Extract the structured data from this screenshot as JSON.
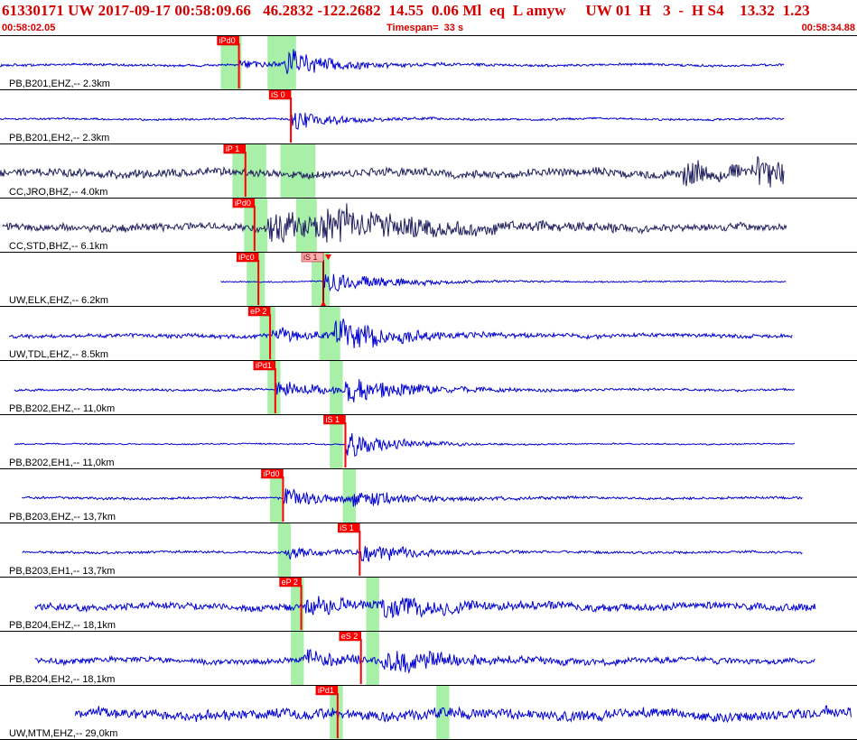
{
  "header": {
    "title": "61330171 UW 2017-09-17 00:58:09.66   46.2832 -122.2682  14.55  0.06 Ml  eq  L amyw     UW 01  H   3  -  H S4    13.32  1.23",
    "start_time": "00:58:02.05",
    "timespan": "Timespan=  33 s",
    "end_time": "00:58:34.88"
  },
  "colors": {
    "trace_blue": "#0000d0",
    "trace_navy": "#202060",
    "pick_red": "#ff0000",
    "pick_pink": "#ffb0b0",
    "window_green": "#a8f0a8",
    "header_red": "#d40000"
  },
  "chart_data": {
    "type": "line",
    "title": "61330171 UW 2017-09-17 00:58:09.66   46.2832 -122.2682  14.55  0.06 Ml  eq  L amyw     UW 01  H   3  -  H S4    13.32  1.23",
    "x_unit": "time",
    "xlim": [
      "00:58:02.05",
      "00:58:34.88"
    ],
    "timespan_s": 33,
    "traces": [
      {
        "label": "PB,B201,EHZ,-- 2.3km",
        "distance_km": 2.3,
        "color": "blue",
        "data_start_s": 0.0,
        "data_end_s": 30.2,
        "amp": 0.18,
        "noise": 0.07,
        "seed": 11,
        "picks": [
          {
            "label": "iPd0",
            "t": 9.2,
            "style": "red"
          }
        ],
        "windows": [
          [
            8.5,
            9.3
          ],
          [
            10.3,
            11.4
          ]
        ],
        "events": [
          {
            "t": 9.2,
            "amp": 0.25,
            "decay": 1.5
          },
          {
            "t": 11.0,
            "amp": 0.7,
            "decay": 1.8
          }
        ]
      },
      {
        "label": "PB,B201,EH2,-- 2.3km",
        "distance_km": 2.3,
        "color": "blue",
        "data_start_s": 0.0,
        "data_end_s": 30.2,
        "amp": 0.15,
        "noise": 0.06,
        "seed": 12,
        "picks": [
          {
            "label": "iS 0",
            "t": 11.2,
            "style": "red"
          }
        ],
        "windows": [],
        "events": [
          {
            "t": 11.2,
            "amp": 0.75,
            "decay": 1.4
          }
        ]
      },
      {
        "label": "CC,JRO,BHZ,-- 4.0km",
        "distance_km": 4.0,
        "color": "navy",
        "data_start_s": 0.0,
        "data_end_s": 30.2,
        "amp": 0.42,
        "noise": 0.25,
        "seed": 13,
        "picks": [
          {
            "label": "iP 1",
            "t": 9.45,
            "style": "red"
          }
        ],
        "windows": [
          [
            8.95,
            10.25
          ],
          [
            10.8,
            12.15
          ]
        ],
        "events": [
          {
            "t": 26.3,
            "amp": 0.9,
            "decay": 1.3
          },
          {
            "t": 29.1,
            "amp": 0.9,
            "decay": 1.4
          }
        ]
      },
      {
        "label": "CC,STD,BHZ,-- 6.1km",
        "distance_km": 6.1,
        "color": "navy",
        "data_start_s": 0.1,
        "data_end_s": 30.3,
        "amp": 0.3,
        "noise": 0.22,
        "seed": 14,
        "picks": [
          {
            "label": "iPd0",
            "t": 9.8,
            "style": "red"
          }
        ],
        "windows": [
          [
            9.4,
            10.3
          ],
          [
            11.4,
            12.2
          ]
        ],
        "events": [
          {
            "t": 10.3,
            "amp": 0.8,
            "decay": 4.0
          },
          {
            "t": 12.3,
            "amp": 0.6,
            "decay": 3.5
          }
        ]
      },
      {
        "label": "UW,ELK,EHZ,-- 6.2km",
        "distance_km": 6.2,
        "color": "blue",
        "data_start_s": 8.5,
        "data_end_s": 30.3,
        "amp": 0.08,
        "noise": 0.04,
        "seed": 15,
        "picks": [
          {
            "label": "iPc0",
            "t": 9.95,
            "style": "red"
          },
          {
            "label": "iS 1",
            "t": 12.45,
            "style": "pink"
          }
        ],
        "windows": [
          [
            9.5,
            10.2
          ],
          [
            12.0,
            12.7
          ]
        ],
        "events": [
          {
            "t": 12.45,
            "amp": 0.8,
            "decay": 2.0
          }
        ]
      },
      {
        "label": "UW,TDL,EHZ,-- 8.5km",
        "distance_km": 8.5,
        "color": "blue",
        "data_start_s": 0.35,
        "data_end_s": 30.5,
        "amp": 0.22,
        "noise": 0.12,
        "seed": 16,
        "picks": [
          {
            "label": "eP 2",
            "t": 10.4,
            "style": "red"
          }
        ],
        "windows": [
          [
            10.0,
            10.6
          ],
          [
            12.3,
            13.1
          ]
        ],
        "events": [
          {
            "t": 10.5,
            "amp": 0.4,
            "decay": 1.6
          },
          {
            "t": 12.9,
            "amp": 0.85,
            "decay": 2.2
          }
        ]
      },
      {
        "label": "PB,B202,EHZ,-- 11,0km",
        "distance_km": 11.0,
        "color": "blue",
        "data_start_s": 0.55,
        "data_end_s": 30.6,
        "amp": 0.13,
        "noise": 0.07,
        "seed": 17,
        "picks": [
          {
            "label": "iPd1",
            "t": 10.6,
            "style": "red"
          }
        ],
        "windows": [
          [
            10.3,
            10.8
          ],
          [
            12.7,
            13.2
          ]
        ],
        "events": [
          {
            "t": 10.6,
            "amp": 0.5,
            "decay": 2.0
          },
          {
            "t": 13.3,
            "amp": 0.75,
            "decay": 2.2
          }
        ]
      },
      {
        "label": "PB,B202,EH1,-- 11,0km",
        "distance_km": 11.0,
        "color": "blue",
        "data_start_s": 0.55,
        "data_end_s": 30.6,
        "amp": 0.07,
        "noise": 0.04,
        "seed": 18,
        "picks": [
          {
            "label": "iS 1",
            "t": 13.3,
            "style": "red"
          }
        ],
        "windows": [
          [
            12.7,
            13.2
          ]
        ],
        "events": [
          {
            "t": 13.3,
            "amp": 0.85,
            "decay": 1.6
          }
        ]
      },
      {
        "label": "PB,B203,EHZ,-- 13,7km",
        "distance_km": 13.7,
        "color": "blue",
        "data_start_s": 0.85,
        "data_end_s": 30.9,
        "amp": 0.12,
        "noise": 0.07,
        "seed": 19,
        "picks": [
          {
            "label": "iPd0",
            "t": 10.9,
            "style": "red"
          }
        ],
        "windows": [
          [
            10.4,
            10.9
          ],
          [
            13.2,
            13.7
          ]
        ],
        "events": [
          {
            "t": 10.9,
            "amp": 0.55,
            "decay": 1.7
          },
          {
            "t": 13.6,
            "amp": 0.5,
            "decay": 2.2
          }
        ]
      },
      {
        "label": "PB,B203,EH1,-- 13,7km",
        "distance_km": 13.7,
        "color": "blue",
        "data_start_s": 0.85,
        "data_end_s": 30.9,
        "amp": 0.12,
        "noise": 0.07,
        "seed": 20,
        "picks": [
          {
            "label": "iS 1",
            "t": 13.85,
            "style": "red"
          }
        ],
        "windows": [
          [
            10.7,
            11.2
          ]
        ],
        "events": [
          {
            "t": 11.0,
            "amp": 0.4,
            "decay": 1.6
          },
          {
            "t": 13.85,
            "amp": 0.6,
            "decay": 1.8
          }
        ]
      },
      {
        "label": "PB,B204,EHZ,-- 18,1km",
        "distance_km": 18.1,
        "color": "blue",
        "data_start_s": 1.35,
        "data_end_s": 31.4,
        "amp": 0.38,
        "noise": 0.22,
        "seed": 21,
        "picks": [
          {
            "label": "eP 2",
            "t": 11.6,
            "style": "red"
          }
        ],
        "windows": [
          [
            11.2,
            11.7
          ],
          [
            14.1,
            14.6
          ]
        ],
        "events": [
          {
            "t": 11.7,
            "amp": 0.35,
            "decay": 2.0
          },
          {
            "t": 14.6,
            "amp": 0.45,
            "decay": 2.5
          }
        ]
      },
      {
        "label": "PB,B204,EH2,-- 18,1km",
        "distance_km": 18.1,
        "color": "blue",
        "data_start_s": 1.35,
        "data_end_s": 31.4,
        "amp": 0.3,
        "noise": 0.18,
        "seed": 22,
        "picks": [
          {
            "label": "eS 2",
            "t": 13.9,
            "style": "red"
          }
        ],
        "windows": [
          [
            11.2,
            11.7
          ],
          [
            14.1,
            14.6
          ]
        ],
        "events": [
          {
            "t": 11.7,
            "amp": 0.4,
            "decay": 1.8
          },
          {
            "t": 14.8,
            "amp": 0.7,
            "decay": 2.3
          }
        ]
      },
      {
        "label": "UW,MTM,EHZ,-- 29,0km",
        "distance_km": 29.0,
        "color": "blue",
        "data_start_s": 2.9,
        "data_end_s": 32.8,
        "amp": 0.55,
        "noise": 0.3,
        "seed": 23,
        "picks": [
          {
            "label": "iPd1",
            "t": 13.0,
            "style": "red"
          }
        ],
        "windows": [
          [
            12.7,
            13.2
          ],
          [
            16.8,
            17.3
          ]
        ],
        "events": []
      }
    ]
  }
}
